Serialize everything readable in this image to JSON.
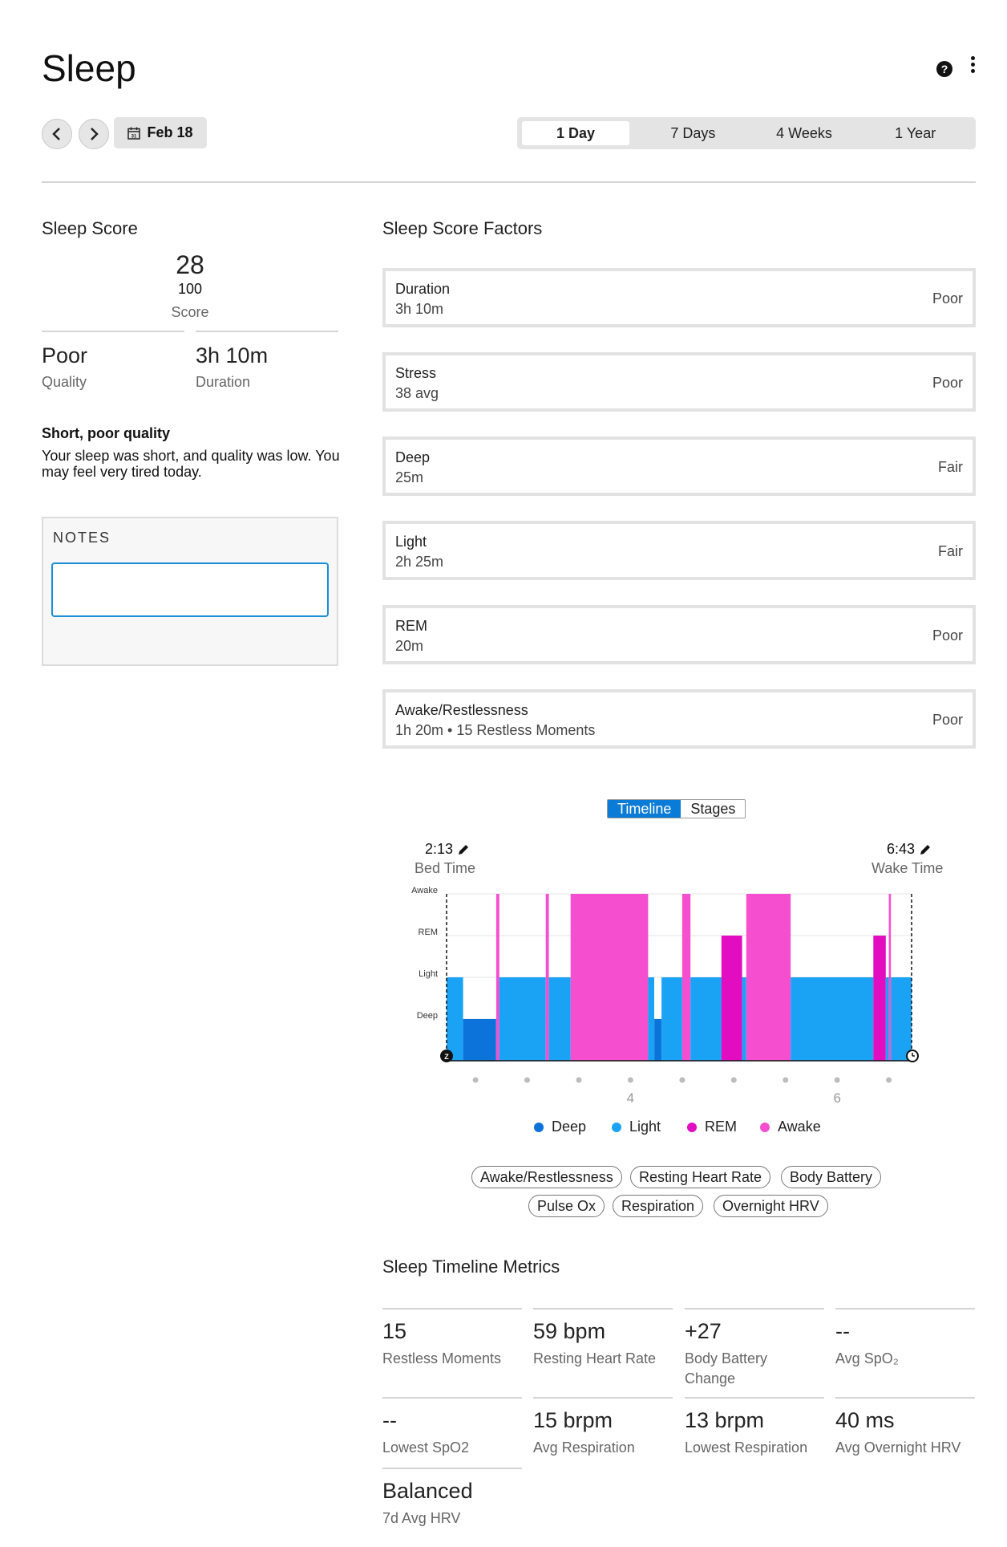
{
  "header": {
    "title": "Sleep",
    "date_label": "Feb 18",
    "calendar_day": "31"
  },
  "range_tabs": [
    "1 Day",
    "7 Days",
    "4 Weeks",
    "1 Year"
  ],
  "sleep_score": {
    "heading": "Sleep Score",
    "score": "28",
    "max": "100",
    "score_label": "Score",
    "quality_value": "Poor",
    "quality_label": "Quality",
    "duration_value": "3h 10m",
    "duration_label": "Duration",
    "summary_title": "Short, poor quality",
    "summary_text": "Your sleep was short, and quality was low. You may feel very tired today."
  },
  "notes": {
    "label": "NOTES"
  },
  "factors": {
    "heading": "Sleep Score Factors",
    "items": [
      {
        "name": "Duration",
        "value": "3h 10m",
        "rating": "Poor"
      },
      {
        "name": "Stress",
        "value": "38 avg",
        "rating": "Poor"
      },
      {
        "name": "Deep",
        "value": "25m",
        "rating": "Fair"
      },
      {
        "name": "Light",
        "value": "2h 25m",
        "rating": "Fair"
      },
      {
        "name": "REM",
        "value": "20m",
        "rating": "Poor"
      },
      {
        "name": "Awake/Restlessness",
        "value": "1h 20m • 15 Restless Moments",
        "rating": "Poor"
      }
    ]
  },
  "chart": {
    "toggle": [
      "Timeline",
      "Stages"
    ],
    "bed_time": "2:13",
    "bed_time_label": "Bed Time",
    "wake_time": "6:43",
    "wake_time_label": "Wake Time",
    "stage_labels": [
      "Awake",
      "REM",
      "Light",
      "Deep"
    ],
    "hour_ticks": [
      "4",
      "6"
    ],
    "legend": [
      {
        "label": "Deep",
        "color": "#0b73d9"
      },
      {
        "label": "Light",
        "color": "#1aa3f5"
      },
      {
        "label": "REM",
        "color": "#e20cc1"
      },
      {
        "label": "Awake",
        "color": "#f54fcf"
      }
    ]
  },
  "chart_data": {
    "type": "bar",
    "x_unit": "hours",
    "x_range": [
      2.22,
      6.72
    ],
    "levels": [
      "Deep",
      "Light",
      "REM",
      "Awake"
    ],
    "segments": [
      {
        "start": 2.22,
        "end": 2.38,
        "stage": "Light"
      },
      {
        "start": 2.38,
        "end": 2.7,
        "stage": "Deep"
      },
      {
        "start": 2.7,
        "end": 2.73,
        "stage": "Awake"
      },
      {
        "start": 2.73,
        "end": 3.18,
        "stage": "Light"
      },
      {
        "start": 3.18,
        "end": 3.21,
        "stage": "Awake"
      },
      {
        "start": 3.21,
        "end": 3.42,
        "stage": "Light"
      },
      {
        "start": 3.42,
        "end": 4.17,
        "stage": "Awake"
      },
      {
        "start": 4.17,
        "end": 4.23,
        "stage": "Light"
      },
      {
        "start": 4.23,
        "end": 4.3,
        "stage": "Deep"
      },
      {
        "start": 4.3,
        "end": 4.5,
        "stage": "Light"
      },
      {
        "start": 4.5,
        "end": 4.58,
        "stage": "Awake"
      },
      {
        "start": 4.58,
        "end": 4.88,
        "stage": "Light"
      },
      {
        "start": 4.88,
        "end": 5.08,
        "stage": "REM"
      },
      {
        "start": 5.08,
        "end": 5.12,
        "stage": "Light"
      },
      {
        "start": 5.12,
        "end": 5.55,
        "stage": "Awake"
      },
      {
        "start": 5.55,
        "end": 6.35,
        "stage": "Light"
      },
      {
        "start": 6.35,
        "end": 6.47,
        "stage": "REM"
      },
      {
        "start": 6.47,
        "end": 6.5,
        "stage": "Light"
      },
      {
        "start": 6.5,
        "end": 6.52,
        "stage": "Awake"
      },
      {
        "start": 6.52,
        "end": 6.72,
        "stage": "Light"
      }
    ]
  },
  "metric_pills": [
    "Awake/Restlessness",
    "Resting Heart Rate",
    "Body Battery",
    "Pulse Ox",
    "Respiration",
    "Overnight HRV"
  ],
  "metrics": {
    "heading": "Sleep Timeline Metrics",
    "items": [
      {
        "value": "15",
        "label": "Restless Moments"
      },
      {
        "value": "59 bpm",
        "label": "Resting Heart Rate"
      },
      {
        "value": "+27",
        "label": "Body Battery Change"
      },
      {
        "value": "--",
        "label": "Avg SpO₂"
      },
      {
        "value": "--",
        "label": "Lowest SpO2"
      },
      {
        "value": "15 brpm",
        "label": "Avg Respiration"
      },
      {
        "value": "13 brpm",
        "label": "Lowest Respiration"
      },
      {
        "value": "40 ms",
        "label": "Avg Overnight HRV"
      },
      {
        "value": "Balanced",
        "label": "7d Avg HRV"
      }
    ]
  }
}
